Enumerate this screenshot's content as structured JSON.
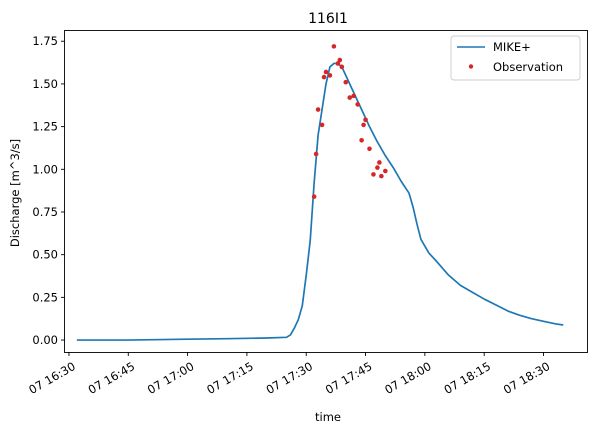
{
  "chart_data": {
    "type": "line",
    "title": "116I1",
    "xlabel": "time",
    "ylabel": "Discharge [m^3/s]",
    "x_unit": "time of day on the 7th (HH:MM)",
    "xlim": [
      "16:29",
      "18:41"
    ],
    "ylim": [
      -0.07,
      1.81
    ],
    "x_ticks": [
      "16:30",
      "16:45",
      "17:00",
      "17:15",
      "17:30",
      "17:45",
      "18:00",
      "18:15",
      "18:30"
    ],
    "x_tick_labels": [
      "07 16:30",
      "07 16:45",
      "07 17:00",
      "07 17:15",
      "07 17:30",
      "07 17:45",
      "07 18:00",
      "07 18:15",
      "07 18:30"
    ],
    "y_ticks": [
      0.0,
      0.25,
      0.5,
      0.75,
      1.0,
      1.25,
      1.5,
      1.75
    ],
    "y_tick_labels": [
      "0.00",
      "0.25",
      "0.50",
      "0.75",
      "1.00",
      "1.25",
      "1.50",
      "1.75"
    ],
    "grid": false,
    "legend_position": "top-right",
    "series": [
      {
        "name": "MIKE+",
        "kind": "line",
        "color": "#1f77b4",
        "points": [
          [
            "16:32",
            0.0
          ],
          [
            "16:45",
            0.0
          ],
          [
            "17:00",
            0.005
          ],
          [
            "17:10",
            0.008
          ],
          [
            "17:20",
            0.012
          ],
          [
            "17:25",
            0.016
          ],
          [
            "17:26",
            0.03
          ],
          [
            "17:27",
            0.07
          ],
          [
            "17:28",
            0.12
          ],
          [
            "17:29",
            0.2
          ],
          [
            "17:30",
            0.38
          ],
          [
            "17:31",
            0.58
          ],
          [
            "17:32",
            0.92
          ],
          [
            "17:33",
            1.2
          ],
          [
            "17:34",
            1.35
          ],
          [
            "17:35",
            1.5
          ],
          [
            "17:36",
            1.6
          ],
          [
            "17:37",
            1.62
          ],
          [
            "17:38",
            1.62
          ],
          [
            "17:39",
            1.6
          ],
          [
            "17:40",
            1.55
          ],
          [
            "17:42",
            1.45
          ],
          [
            "17:44",
            1.35
          ],
          [
            "17:46",
            1.25
          ],
          [
            "17:48",
            1.16
          ],
          [
            "17:50",
            1.08
          ],
          [
            "17:52",
            1.01
          ],
          [
            "17:54",
            0.93
          ],
          [
            "17:56",
            0.86
          ],
          [
            "17:57",
            0.78
          ],
          [
            "17:58",
            0.68
          ],
          [
            "17:59",
            0.59
          ],
          [
            "18:01",
            0.51
          ],
          [
            "18:03",
            0.46
          ],
          [
            "18:06",
            0.38
          ],
          [
            "18:09",
            0.32
          ],
          [
            "18:12",
            0.28
          ],
          [
            "18:15",
            0.24
          ],
          [
            "18:18",
            0.205
          ],
          [
            "18:21",
            0.17
          ],
          [
            "18:24",
            0.145
          ],
          [
            "18:27",
            0.125
          ],
          [
            "18:30",
            0.11
          ],
          [
            "18:33",
            0.095
          ],
          [
            "18:35",
            0.088
          ]
        ]
      },
      {
        "name": "Observation",
        "kind": "scatter",
        "color": "#d62728",
        "points": [
          [
            "17:32",
            0.84
          ],
          [
            "17:32.5",
            1.09
          ],
          [
            "17:33",
            1.35
          ],
          [
            "17:34",
            1.26
          ],
          [
            "17:34.5",
            1.54
          ],
          [
            "17:35",
            1.57
          ],
          [
            "17:36",
            1.55
          ],
          [
            "17:37",
            1.72
          ],
          [
            "17:38",
            1.62
          ],
          [
            "17:38.5",
            1.64
          ],
          [
            "17:39",
            1.6
          ],
          [
            "17:40",
            1.51
          ],
          [
            "17:41",
            1.42
          ],
          [
            "17:42",
            1.43
          ],
          [
            "17:43",
            1.38
          ],
          [
            "17:44",
            1.17
          ],
          [
            "17:44.5",
            1.26
          ],
          [
            "17:45",
            1.29
          ],
          [
            "17:46",
            1.12
          ],
          [
            "17:47",
            0.97
          ],
          [
            "17:48",
            1.01
          ],
          [
            "17:48.5",
            1.04
          ],
          [
            "17:49",
            0.96
          ],
          [
            "17:50",
            0.99
          ]
        ]
      }
    ]
  }
}
